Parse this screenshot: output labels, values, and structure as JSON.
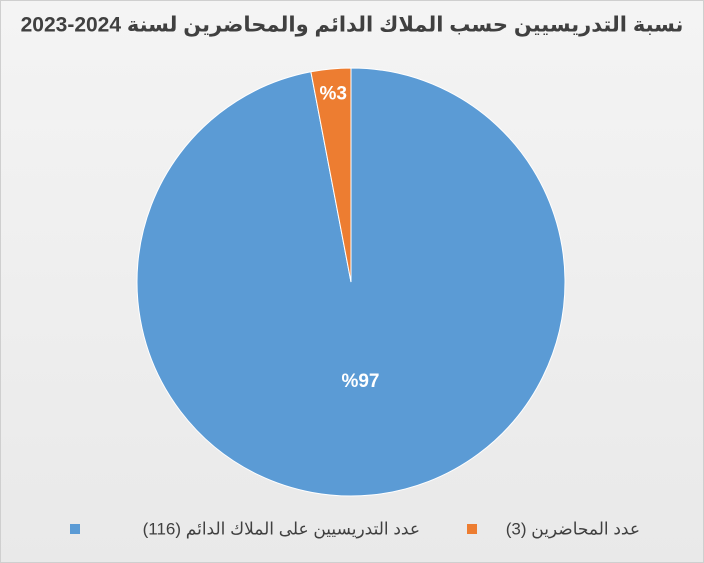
{
  "chart_data": {
    "type": "pie",
    "title": "نسبة التدريسيين حسب الملاك الدائم والمحاضرين لسنة 2024-2023",
    "categories": [
      "عدد التدريسيين على الملاك الدائم (116)",
      "عدد المحاضرين (3)"
    ],
    "values": [
      97,
      3
    ],
    "value_labels": [
      "%97",
      "%3"
    ],
    "colors": [
      "#5b9bd5",
      "#ed7d31"
    ]
  }
}
